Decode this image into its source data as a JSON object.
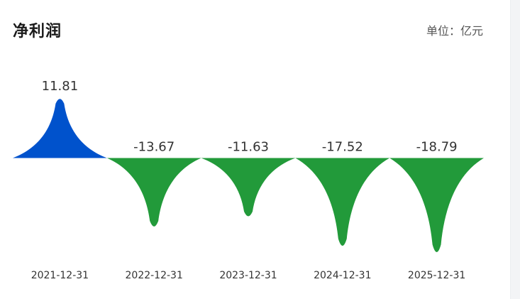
{
  "header": {
    "title": "净利润",
    "unit_label": "单位：亿元"
  },
  "chart_data": {
    "type": "bar",
    "title": "净利润",
    "unit": "亿元",
    "categories": [
      "2021-12-31",
      "2022-12-31",
      "2023-12-31",
      "2024-12-31",
      "2025-12-31"
    ],
    "values": [
      11.81,
      -13.67,
      -11.63,
      -17.52,
      -18.79
    ],
    "value_labels": [
      "11.81",
      "-13.67",
      "-11.63",
      "-17.52",
      "-18.79"
    ],
    "colors": {
      "positive": "#0052cc",
      "negative": "#229a3a"
    },
    "xlabel": "",
    "ylabel": "",
    "grid": false,
    "legend": "none"
  }
}
